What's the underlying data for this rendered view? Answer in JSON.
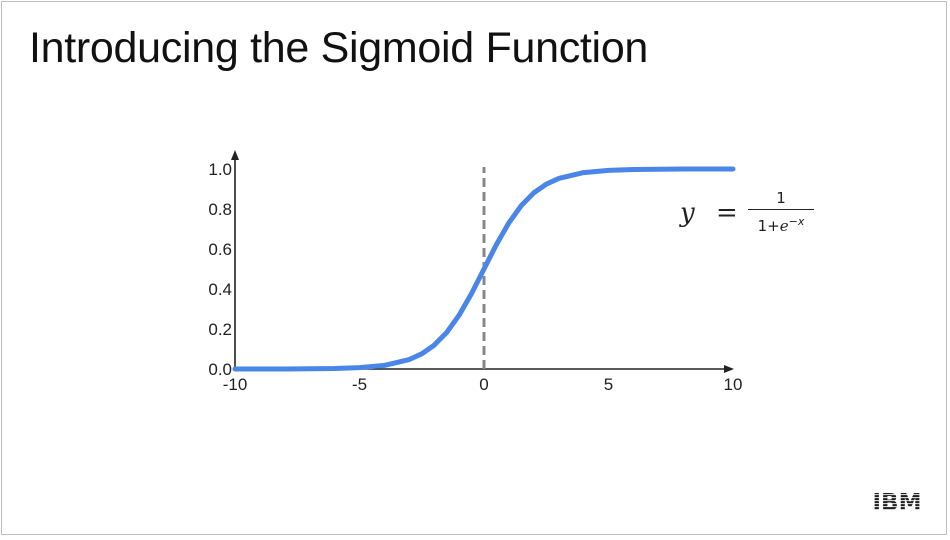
{
  "slide": {
    "title": "Introducing the Sigmoid Function"
  },
  "formula": {
    "lhs": "y",
    "equals": "=",
    "numerator": "1",
    "denominator_base": "1+",
    "denominator_e": "e",
    "denominator_exponent": "−x"
  },
  "logo": {
    "text": "IBM",
    "icon": "ibm-logo-icon"
  },
  "chart_data": {
    "type": "line",
    "title": "",
    "xlabel": "",
    "ylabel": "",
    "xlim": [
      -10,
      10
    ],
    "ylim": [
      0,
      1
    ],
    "x_ticks": [
      -10,
      -5,
      0,
      5,
      10
    ],
    "x_tick_labels": [
      "-10",
      "-5",
      "0",
      "5",
      "10"
    ],
    "y_ticks": [
      0.0,
      0.2,
      0.4,
      0.6,
      0.8,
      1.0
    ],
    "y_tick_labels": [
      "0.0",
      "0.2",
      "0.4",
      "0.6",
      "0.8",
      "1.0"
    ],
    "grid": false,
    "legend": "none",
    "reference_line": {
      "x": 0,
      "style": "dashed",
      "color": "#888888"
    },
    "series": [
      {
        "function": "sigmoid",
        "color": "#4a86e8",
        "x": [
          -10,
          -8,
          -6,
          -5,
          -4,
          -3,
          -2.5,
          -2,
          -1.5,
          -1,
          -0.5,
          0,
          0.5,
          1,
          1.5,
          2,
          2.5,
          3,
          4,
          5,
          6,
          8,
          10
        ],
        "y": [
          0.0,
          0.0003,
          0.0025,
          0.0067,
          0.018,
          0.0474,
          0.0759,
          0.1192,
          0.1824,
          0.2689,
          0.3775,
          0.5,
          0.6225,
          0.7311,
          0.8176,
          0.8808,
          0.9241,
          0.9526,
          0.982,
          0.9933,
          0.9975,
          0.9997,
          1.0
        ]
      }
    ]
  }
}
